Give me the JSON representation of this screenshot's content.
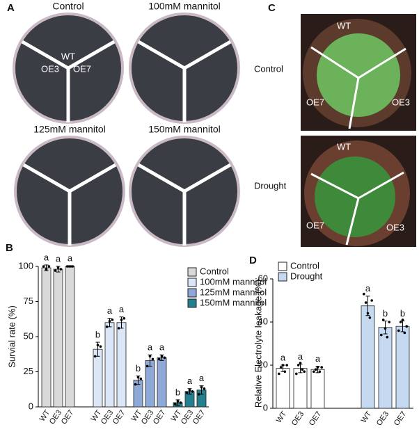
{
  "panel_labels": [
    "A",
    "C"
  ],
  "photos_a": {
    "titles": [
      "Control",
      "100mM mannitol",
      "125mM mannitol",
      "150mM mannitol"
    ],
    "genotypes": [
      "WT",
      "OE3",
      "OE7"
    ]
  },
  "photos_c": {
    "conditions": [
      "Control",
      "Drought"
    ],
    "genotypes": [
      "WT",
      "OE7",
      "OE3"
    ]
  },
  "chart_data": [
    {
      "type": "bar",
      "panel": "B",
      "ylabel": "Survial rate (%)",
      "categories": [
        "WT",
        "OE3",
        "OE7"
      ],
      "ylim": [
        0,
        100
      ],
      "yticks": [
        0,
        25,
        50,
        75,
        100
      ],
      "legend": "upper right",
      "series": [
        {
          "name": "Control",
          "color": "#d9d9d9",
          "values": [
            99,
            98,
            100
          ],
          "errors": [
            2,
            2,
            0.5
          ],
          "points": [
            [
              100,
              98,
              100
            ],
            [
              97,
              99,
              98
            ],
            [
              100,
              100,
              100
            ]
          ],
          "letters": [
            "a",
            "a",
            "a"
          ]
        },
        {
          "name": "100mM mannitol",
          "color": "#dbe7f7",
          "values": [
            41,
            60,
            60
          ],
          "errors": [
            5,
            3,
            4
          ],
          "points": [
            [
              36,
              44,
              43
            ],
            [
              57,
              61,
              62
            ],
            [
              56,
              62,
              63
            ]
          ],
          "letters": [
            "b",
            "a",
            "a"
          ]
        },
        {
          "name": "125mM mannitol",
          "color": "#8ea9d8",
          "values": [
            19,
            33,
            35
          ],
          "errors": [
            3,
            4,
            2
          ],
          "points": [
            [
              16,
              21,
              20
            ],
            [
              29,
              36,
              34
            ],
            [
              34,
              36,
              35
            ]
          ],
          "letters": [
            "b",
            "a",
            "a"
          ]
        },
        {
          "name": "150mM mannitol",
          "color": "#24808f",
          "values": [
            3,
            11,
            12
          ],
          "errors": [
            2,
            2,
            3
          ],
          "points": [
            [
              2,
              4,
              3
            ],
            [
              10,
              12,
              11
            ],
            [
              9,
              14,
              13
            ]
          ],
          "letters": [
            "b",
            "a",
            "a"
          ]
        }
      ]
    },
    {
      "type": "bar",
      "panel": "D",
      "ylabel": "Relative Electrolyte leakage (%)",
      "categories": [
        "WT",
        "OE3",
        "OE7"
      ],
      "ylim": [
        0,
        60
      ],
      "yticks": [
        0,
        20,
        40,
        60
      ],
      "legend": "upper left",
      "series": [
        {
          "name": "Control",
          "color": "#ffffff",
          "values": [
            18.5,
            18.5,
            18
          ],
          "errors": [
            1.5,
            2,
            1.5
          ],
          "points": [
            [
              16,
              19,
              20,
              17,
              20
            ],
            [
              16,
              20,
              21,
              18,
              17
            ],
            [
              17,
              18,
              19,
              17,
              19
            ]
          ],
          "letters": [
            "a",
            "a",
            "a"
          ]
        },
        {
          "name": "Drought",
          "color": "#c5d9f1",
          "values": [
            47.5,
            37.5,
            38
          ],
          "errors": [
            4.5,
            3,
            2.5
          ],
          "points": [
            [
              53,
              49,
              44,
              42,
              50
            ],
            [
              34,
              41,
              37,
              33,
              40
            ],
            [
              36,
              40,
              41,
              35,
              38
            ]
          ],
          "letters": [
            "a",
            "b",
            "b"
          ]
        }
      ]
    }
  ]
}
